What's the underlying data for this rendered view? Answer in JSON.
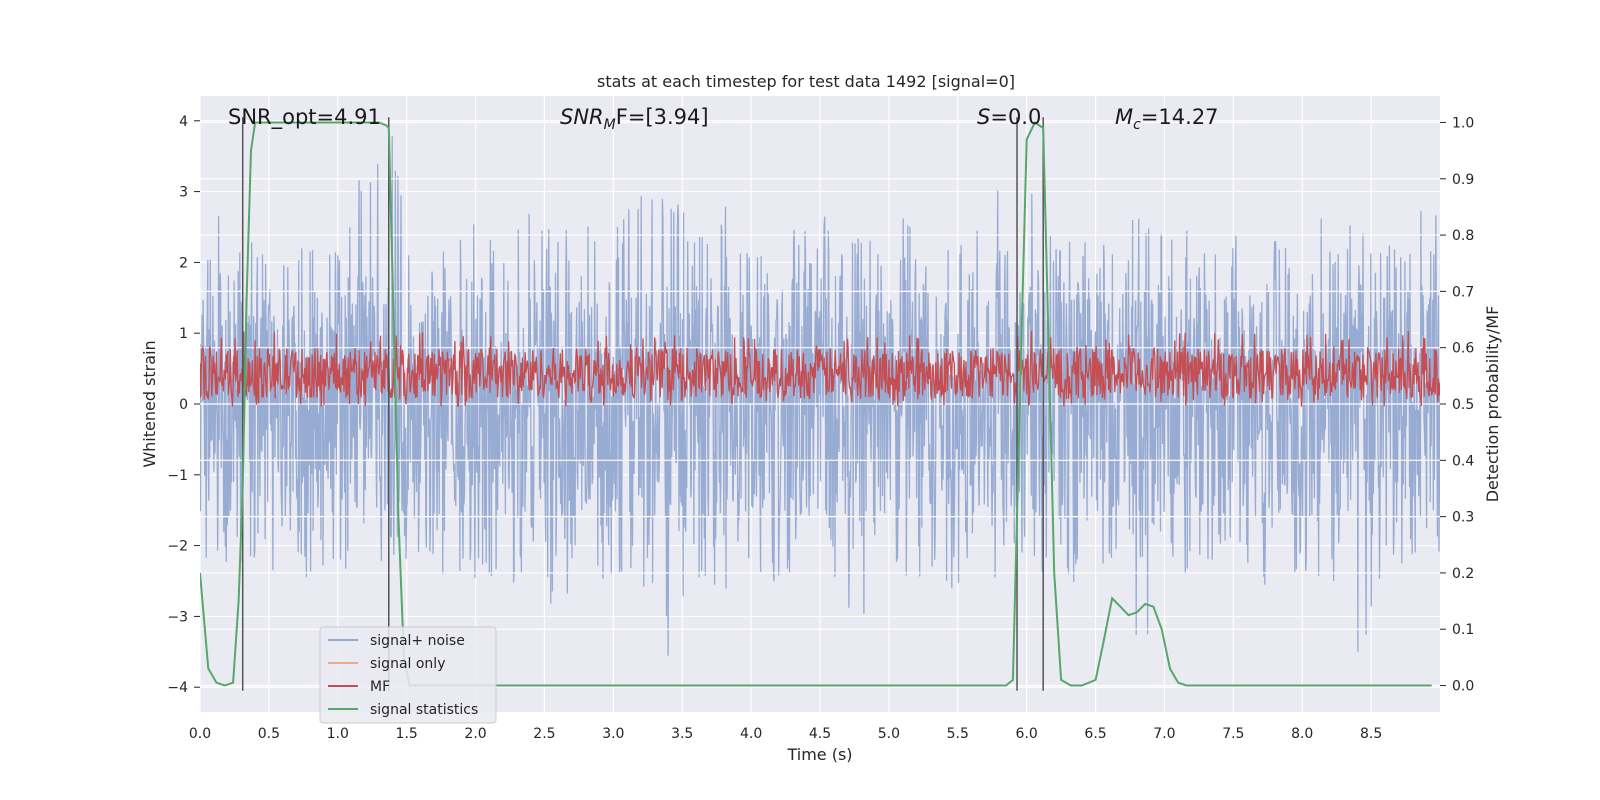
{
  "chart_data": {
    "type": "line",
    "title": "stats at each timestep for test data 1492 [signal=0]",
    "xlabel": "Time (s)",
    "ylabel": "Whitened strain",
    "y2label": "Detection probability/MF",
    "xlim": [
      0.0,
      9.0
    ],
    "ylim": [
      -4.35,
      4.35
    ],
    "y2lim": [
      -0.047,
      1.047
    ],
    "xticks": [
      0.0,
      0.5,
      1.0,
      1.5,
      2.0,
      2.5,
      3.0,
      3.5,
      4.0,
      4.5,
      5.0,
      5.5,
      6.0,
      6.5,
      7.0,
      7.5,
      8.0,
      8.5
    ],
    "xtick_labels": [
      "0.0",
      "0.5",
      "1.0",
      "1.5",
      "2.0",
      "2.5",
      "3.0",
      "3.5",
      "4.0",
      "4.5",
      "5.0",
      "5.5",
      "6.0",
      "6.5",
      "7.0",
      "7.5",
      "8.0",
      "8.5"
    ],
    "yticks": [
      4,
      3,
      2,
      1,
      0,
      -1,
      -2,
      -3,
      -4
    ],
    "ytick_labels": [
      "4",
      "3",
      "2",
      "1",
      "0",
      "−1",
      "−2",
      "−3",
      "−4"
    ],
    "y2ticks": [
      1.0,
      0.9,
      0.8,
      0.7,
      0.6,
      0.5,
      0.4,
      0.3,
      0.2,
      0.1,
      0.0
    ],
    "y2tick_labels": [
      "1.0",
      "0.9",
      "0.8",
      "0.7",
      "0.6",
      "0.5",
      "0.4",
      "0.3",
      "0.2",
      "0.1",
      "0.0"
    ],
    "grid": true,
    "legend_position": "lower-left",
    "annotations": {
      "snr_opt": "SNR_opt=4.91",
      "snr_mf": {
        "main": "SNR",
        "sub": "M",
        "rest": "F=[3.94]"
      },
      "s_value": {
        "main": "S",
        "rest": "=0.0"
      },
      "m_c": {
        "main": "M",
        "sub": "c",
        "rest": "=14.27"
      }
    },
    "vertical_lines_x": [
      0.31,
      1.37,
      5.93,
      6.12
    ],
    "series": [
      {
        "name": "signal+ noise",
        "color": "#92a8d1",
        "axis": "left",
        "envelope": {
          "x": [
            0.0,
            0.2,
            0.4,
            0.6,
            0.8,
            1.0,
            1.2,
            1.4,
            1.6,
            1.8,
            2.0,
            2.2,
            2.4,
            2.6,
            2.8,
            3.0,
            3.2,
            3.4,
            3.6,
            3.8,
            4.0,
            4.2,
            4.4,
            4.6,
            4.8,
            5.0,
            5.2,
            5.4,
            5.6,
            5.8,
            6.0,
            6.2,
            6.4,
            6.6,
            6.8,
            7.0,
            7.2,
            7.4,
            7.6,
            7.8,
            8.0,
            8.2,
            8.4,
            8.6,
            8.8,
            9.0
          ],
          "upper": [
            2.2,
            2.9,
            2.6,
            2.5,
            2.4,
            2.3,
            3.5,
            3.8,
            2.5,
            2.4,
            2.6,
            2.5,
            2.7,
            2.4,
            2.6,
            2.5,
            3.0,
            3.1,
            2.4,
            2.8,
            2.6,
            2.5,
            2.6,
            2.8,
            2.4,
            2.8,
            2.5,
            2.6,
            2.4,
            3.1,
            3.4,
            2.4,
            2.6,
            2.5,
            2.7,
            2.4,
            2.6,
            2.4,
            2.7,
            2.5,
            2.5,
            2.7,
            2.6,
            2.3,
            2.8,
            2.7
          ],
          "lower": [
            -2.0,
            -2.6,
            -2.3,
            -2.4,
            -2.5,
            -2.3,
            -2.4,
            -2.4,
            -2.3,
            -2.6,
            -2.5,
            -2.6,
            -2.5,
            -3.0,
            -2.6,
            -2.4,
            -2.5,
            -3.6,
            -2.5,
            -2.8,
            -2.4,
            -2.6,
            -2.5,
            -2.5,
            -3.3,
            -2.4,
            -2.5,
            -2.6,
            -2.7,
            -2.8,
            -2.4,
            -2.6,
            -2.5,
            -2.4,
            -3.8,
            -2.5,
            -2.4,
            -2.6,
            -2.5,
            -2.7,
            -2.4,
            -2.6,
            -3.9,
            -2.5,
            -2.7,
            -2.3
          ]
        }
      },
      {
        "name": "signal only",
        "color": "#f2a98a",
        "axis": "left"
      },
      {
        "name": "MF",
        "color": "#c44e52",
        "axis": "right",
        "band": [
          0.51,
          0.6
        ]
      },
      {
        "name": "signal statistics",
        "color": "#55a868",
        "axis": "right",
        "x": [
          0.0,
          0.06,
          0.12,
          0.18,
          0.24,
          0.28,
          0.31,
          0.34,
          0.37,
          0.4,
          0.45,
          0.6,
          1.0,
          1.2,
          1.3,
          1.35,
          1.37,
          1.4,
          1.44,
          1.48,
          1.52,
          2.0,
          3.0,
          4.0,
          5.0,
          5.5,
          5.85,
          5.9,
          5.93,
          5.96,
          6.0,
          6.06,
          6.12,
          6.16,
          6.2,
          6.25,
          6.32,
          6.4,
          6.5,
          6.56,
          6.62,
          6.68,
          6.74,
          6.8,
          6.86,
          6.92,
          6.98,
          7.04,
          7.1,
          7.16,
          8.0,
          8.94
        ],
        "values": [
          0.2,
          0.03,
          0.005,
          0.0,
          0.005,
          0.15,
          0.35,
          0.7,
          0.95,
          1.0,
          1.0,
          1.0,
          1.0,
          1.0,
          1.0,
          0.995,
          0.99,
          0.7,
          0.3,
          0.05,
          0.0,
          0.0,
          0.0,
          0.0,
          0.0,
          0.0,
          0.0,
          0.01,
          0.3,
          0.6,
          0.97,
          1.0,
          0.99,
          0.6,
          0.2,
          0.01,
          0.0,
          0.0,
          0.01,
          0.08,
          0.155,
          0.14,
          0.125,
          0.13,
          0.145,
          0.14,
          0.1,
          0.03,
          0.005,
          0.0,
          0.0,
          0.0
        ]
      }
    ]
  }
}
